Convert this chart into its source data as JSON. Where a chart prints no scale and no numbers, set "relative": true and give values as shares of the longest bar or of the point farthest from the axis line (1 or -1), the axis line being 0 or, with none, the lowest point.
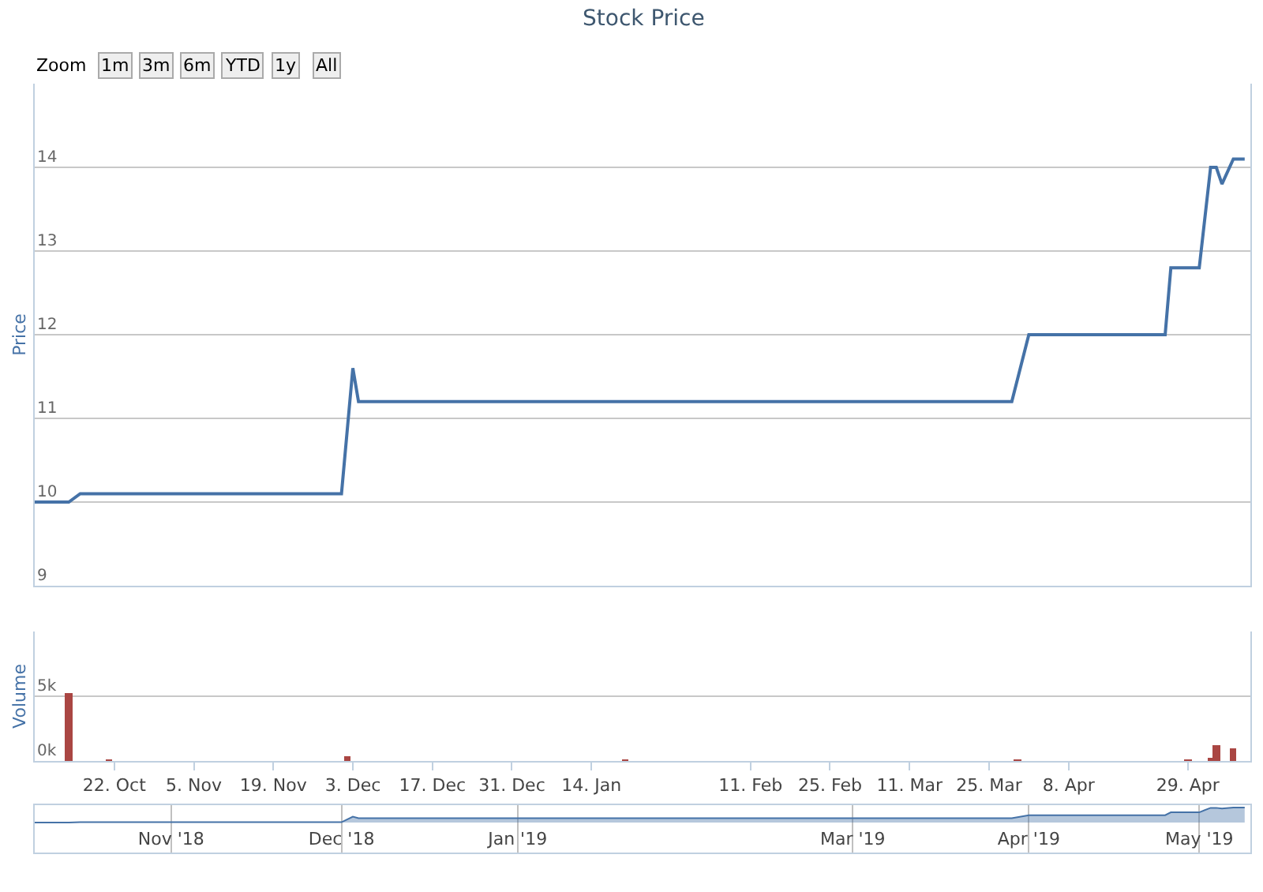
{
  "chart_data": [
    {
      "type": "line",
      "title": "Stock Price",
      "ylabel": "Price",
      "annotations": [
        "Zoom",
        "1m",
        "3m",
        "6m",
        "YTD",
        "1y",
        "All"
      ],
      "x": [
        "2018-10-08",
        "2018-10-14",
        "2018-10-16",
        "2018-12-01",
        "2018-12-03",
        "2018-12-04",
        "2019-03-29",
        "2019-04-01",
        "2019-04-25",
        "2019-04-26",
        "2019-05-01",
        "2019-05-03",
        "2019-05-04",
        "2019-05-05",
        "2019-05-07",
        "2019-05-09"
      ],
      "series": [
        {
          "color": "#4572a7",
          "values": [
            10.0,
            10.0,
            10.1,
            10.1,
            11.6,
            11.2,
            11.2,
            12.0,
            12.0,
            12.8,
            12.8,
            14.0,
            14.0,
            13.8,
            14.1,
            14.1
          ]
        }
      ],
      "xlim": [
        "2018-10-08",
        "2019-05-10"
      ],
      "ylim": [
        9,
        15
      ],
      "yticks": [
        9,
        10,
        11,
        12,
        13,
        14
      ],
      "grid": "y",
      "tick_labels": "y",
      "line_style": "solid",
      "marker": "none"
    },
    {
      "type": "bar",
      "ylabel": "Volume",
      "x": [
        "2018-10-14",
        "2018-10-21",
        "2018-12-02",
        "2019-01-20",
        "2019-03-30",
        "2019-04-29",
        "2019-05-03",
        "2019-05-04",
        "2019-05-07"
      ],
      "series": [
        {
          "color": "#aa4643",
          "values": [
            5200,
            100,
            400,
            100,
            100,
            100,
            200,
            1200,
            1000
          ]
        }
      ],
      "xlim": [
        "2018-10-08",
        "2019-05-10"
      ],
      "xticks": [
        {
          "value": "2018-10-22",
          "label": "22. Oct"
        },
        {
          "value": "2018-11-05",
          "label": "5. Nov"
        },
        {
          "value": "2018-11-19",
          "label": "19. Nov"
        },
        {
          "value": "2018-12-03",
          "label": "3. Dec"
        },
        {
          "value": "2018-12-17",
          "label": "17. Dec"
        },
        {
          "value": "2018-12-31",
          "label": "31. Dec"
        },
        {
          "value": "2019-01-14",
          "label": "14. Jan"
        },
        {
          "value": "2019-02-11",
          "label": "11. Feb"
        },
        {
          "value": "2019-02-25",
          "label": "25. Feb"
        },
        {
          "value": "2019-03-11",
          "label": "11. Mar"
        },
        {
          "value": "2019-03-25",
          "label": "25. Mar"
        },
        {
          "value": "2019-04-08",
          "label": "8. Apr"
        },
        {
          "value": "2019-04-29",
          "label": "29. Apr"
        }
      ],
      "ylim": [
        0,
        10000
      ],
      "yticks": [
        {
          "value": 0,
          "label": "0k"
        },
        {
          "value": 5000,
          "label": "5k"
        }
      ],
      "grid": "y"
    },
    {
      "type": "area",
      "relative": true,
      "x": [
        "2018-10-08",
        "2018-10-14",
        "2018-10-16",
        "2018-12-01",
        "2018-12-03",
        "2018-12-04",
        "2019-03-29",
        "2019-04-01",
        "2019-04-25",
        "2019-04-26",
        "2019-05-01",
        "2019-05-03",
        "2019-05-04",
        "2019-05-05",
        "2019-05-07",
        "2019-05-09"
      ],
      "series": [
        {
          "color": "#4572a7",
          "values": [
            0,
            0,
            0.02,
            0.02,
            0.39,
            0.29,
            0.29,
            0.49,
            0.49,
            0.68,
            0.68,
            0.98,
            0.98,
            0.93,
            1,
            1
          ]
        }
      ],
      "xlim": [
        "2018-10-08",
        "2019-05-10"
      ],
      "xticks": [
        {
          "value": "2018-11-01",
          "label": "Nov '18"
        },
        {
          "value": "2018-12-01",
          "label": "Dec '18"
        },
        {
          "value": "2019-01-01",
          "label": "Jan '19"
        },
        {
          "value": "2019-03-01",
          "label": "Mar '19"
        },
        {
          "value": "2019-04-01",
          "label": "Apr '19"
        },
        {
          "value": "2019-05-01",
          "label": "May '19"
        }
      ],
      "grid": "x",
      "tick_labels": "x"
    }
  ]
}
